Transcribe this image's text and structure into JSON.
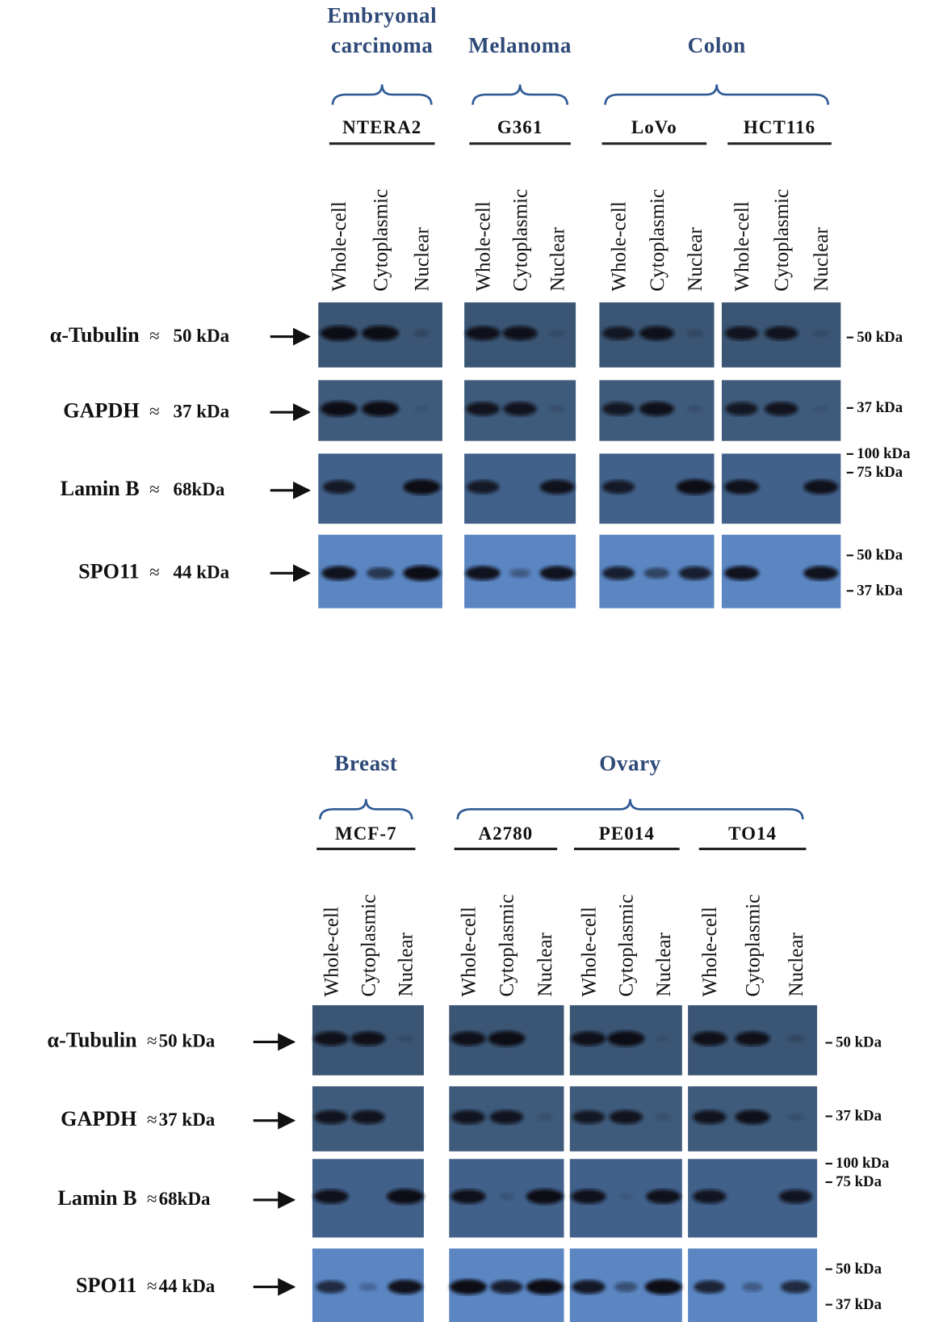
{
  "panels": [
    {
      "tissues": [
        {
          "lines": [
            "Embryonal",
            "carcinoma"
          ]
        },
        {
          "lines": [
            "Melanoma"
          ]
        },
        {
          "lines": [
            "Colon"
          ]
        }
      ],
      "cell_lines": [
        {
          "name": "NTERA2",
          "lanes": [
            "Whole-cell",
            "Cytoplasmic",
            "Nuclear"
          ]
        },
        {
          "name": "G361",
          "lanes": [
            "Whole-cell",
            "Cytoplasmic",
            "Nuclear"
          ]
        },
        {
          "name": "LoVo",
          "lanes": [
            "Whole-cell",
            "Cytoplasmic",
            "Nuclear"
          ]
        },
        {
          "name": "HCT116",
          "lanes": [
            "Whole-cell",
            "Cytoplasmic",
            "Nuclear"
          ]
        }
      ],
      "rows": [
        {
          "protein": "α-Tubulin",
          "approx": "≈",
          "size": "50 kDa",
          "markers": [
            "50 kDa"
          ]
        },
        {
          "protein": "GAPDH",
          "approx": "≈",
          "size": "37 kDa",
          "markers": [
            "37 kDa"
          ]
        },
        {
          "protein": "Lamin B",
          "approx": "≈",
          "size": "68kDa",
          "markers": [
            "100 kDa",
            "75 kDa"
          ]
        },
        {
          "protein": "SPO11",
          "approx": "≈",
          "size": "44 kDa",
          "markers": [
            "50 kDa",
            "37 kDa"
          ]
        }
      ]
    },
    {
      "tissues": [
        {
          "lines": [
            "Breast"
          ]
        },
        {
          "lines": [
            "Ovary"
          ]
        }
      ],
      "cell_lines": [
        {
          "name": "MCF-7",
          "lanes": [
            "Whole-cell",
            "Cytoplasmic",
            "Nuclear"
          ]
        },
        {
          "name": "A2780",
          "lanes": [
            "Whole-cell",
            "Cytoplasmic",
            "Nuclear"
          ]
        },
        {
          "name": "PE014",
          "lanes": [
            "Whole-cell",
            "Cytoplasmic",
            "Nuclear"
          ]
        },
        {
          "name": "TO14",
          "lanes": [
            "Whole-cell",
            "Cytoplasmic",
            "Nuclear"
          ]
        }
      ],
      "rows": [
        {
          "protein": "α-Tubulin",
          "approx": "≈",
          "size": "50 kDa",
          "markers": [
            "50 kDa"
          ]
        },
        {
          "protein": "GAPDH",
          "approx": "≈",
          "size": "37 kDa",
          "markers": [
            "37 kDa"
          ]
        },
        {
          "protein": "Lamin B",
          "approx": "≈",
          "size": "68kDa",
          "markers": [
            "100 kDa",
            "75 kDa"
          ]
        },
        {
          "protein": "SPO11",
          "approx": "≈",
          "size": "44 kDa",
          "markers": [
            "50 kDa",
            "37 kDa"
          ]
        }
      ]
    }
  ]
}
